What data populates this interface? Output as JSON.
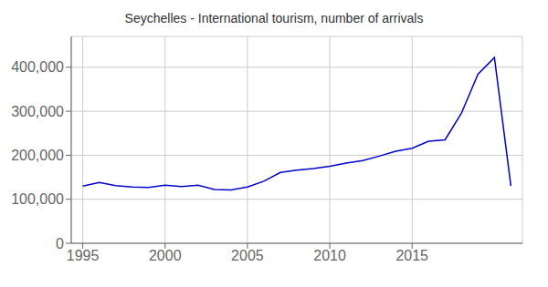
{
  "chart_data": {
    "type": "line",
    "title": "Seychelles - International tourism, number of arrivals",
    "x": [
      1995,
      1996,
      1997,
      1998,
      1999,
      2000,
      2001,
      2002,
      2003,
      2004,
      2005,
      2006,
      2007,
      2008,
      2009,
      2010,
      2011,
      2012,
      2013,
      2014,
      2015,
      2016,
      2017,
      2018,
      2019,
      2020,
      2021
    ],
    "values": [
      130000,
      138000,
      131000,
      128000,
      127000,
      132000,
      129000,
      132000,
      122000,
      121000,
      128000,
      141000,
      161000,
      166000,
      170000,
      175000,
      182000,
      188000,
      198000,
      209000,
      216000,
      232000,
      235000,
      296000,
      384000,
      422000,
      130000
    ],
    "color": "#0000cc",
    "xlim": [
      1994.3,
      2021.7
    ],
    "xticks": [
      1995,
      2000,
      2005,
      2010,
      2015
    ],
    "ylim": [
      0,
      470000
    ],
    "yticks": [
      0,
      {
        "value": 100000,
        "label": "100,000"
      },
      {
        "value": 200000,
        "label": "200,000"
      },
      {
        "value": 300000,
        "label": "300,000"
      },
      {
        "value": 400000,
        "label": "400,000"
      }
    ],
    "grid": true
  }
}
